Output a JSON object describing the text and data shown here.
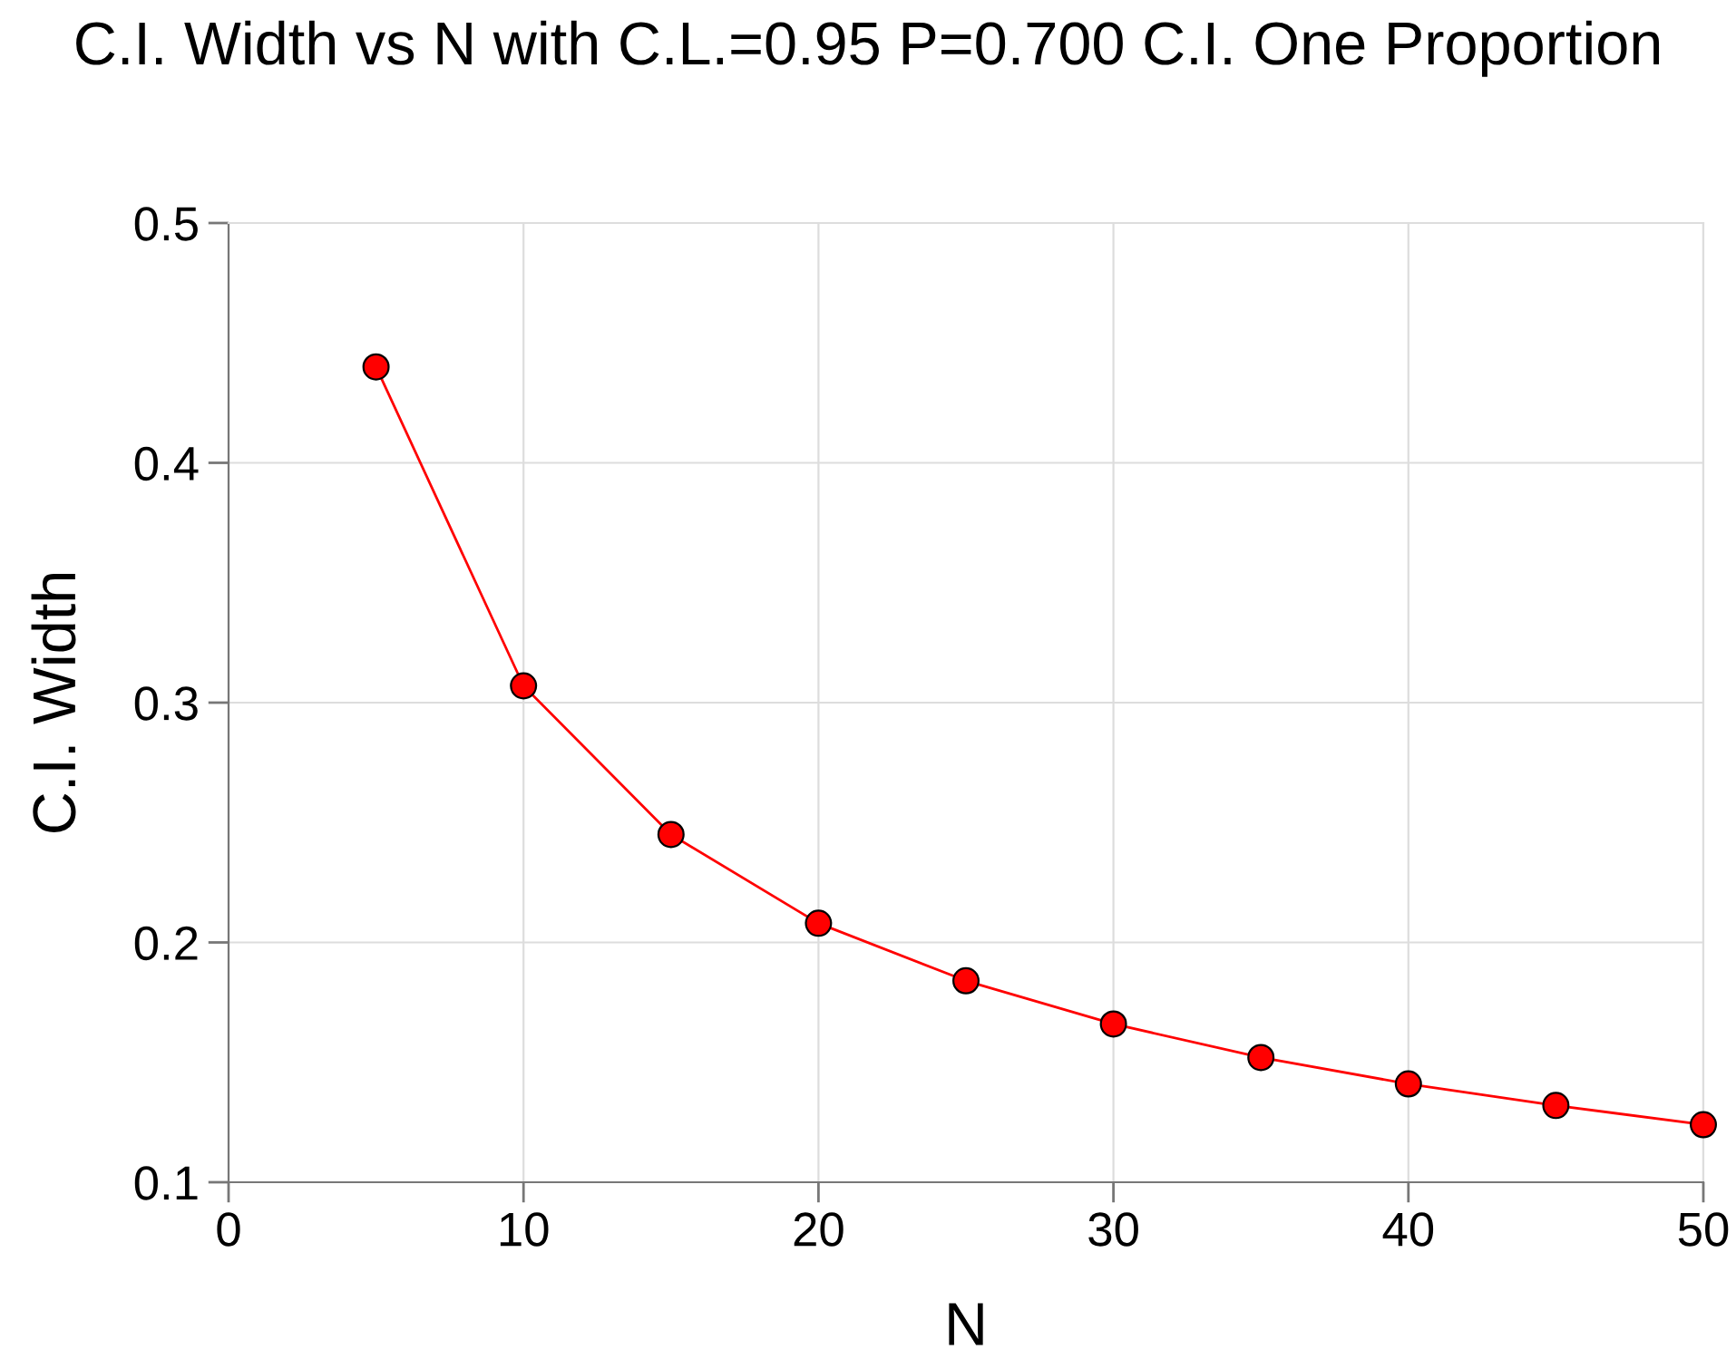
{
  "chart_data": {
    "type": "line",
    "title": "C.I. Width vs N with C.L.=0.95 P=0.700 C.I. One Proportion",
    "xlabel": "N",
    "ylabel": "C.I. Width",
    "x": [
      5,
      10,
      15,
      20,
      25,
      30,
      35,
      40,
      45,
      50
    ],
    "series": [
      {
        "color": "#ff0000",
        "values": [
          0.44,
          0.307,
          0.245,
          0.208,
          0.184,
          0.166,
          0.152,
          0.141,
          0.132,
          0.124
        ]
      }
    ],
    "xlim": [
      0,
      50
    ],
    "xticks": [
      0,
      10,
      20,
      30,
      40,
      50
    ],
    "ylim": [
      0.1,
      0.5
    ],
    "yticks": [
      0.1,
      0.2,
      0.3,
      0.4,
      0.5
    ],
    "grid": true,
    "marker": "circle",
    "line_style": "solid"
  }
}
